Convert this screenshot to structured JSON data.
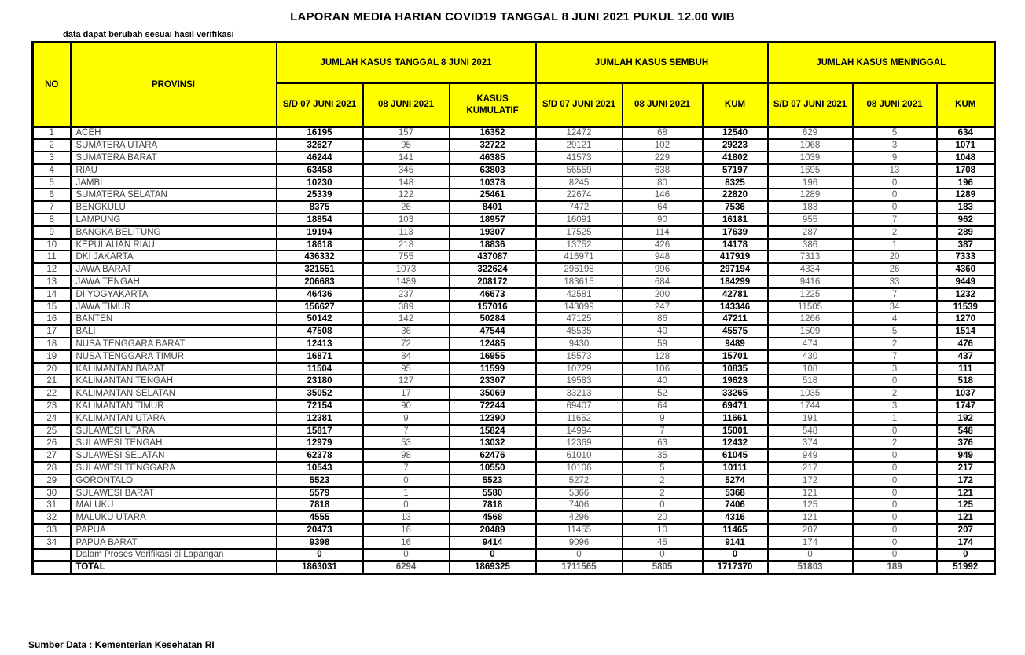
{
  "title": "LAPORAN MEDIA HARIAN COVID19 TANGGAL 8 JUNI 2021 PUKUL 12.00 WIB",
  "note": "data dapat berubah sesuai hasil verifikasi",
  "footer": "Sumber Data : Kementerian Kesehatan RI",
  "colors": {
    "header_bg": "#FFFF00",
    "border": "#000000",
    "bold_text": "#000000",
    "gray_num": "#595959",
    "prov_text": "#404040"
  },
  "table": {
    "no_label": "NO",
    "provinsi_label": "PROVINSI",
    "groups": [
      {
        "label": "JUMLAH KASUS TANGGAL 8 JUNI 2021",
        "sub": [
          "S/D 07 JUNI 2021",
          "08 JUNI 2021",
          "KASUS KUMULATIF"
        ]
      },
      {
        "label": "JUMLAH KASUS SEMBUH",
        "sub": [
          "S/D 07 JUNI 2021",
          "08 JUNI 2021",
          "KUM"
        ]
      },
      {
        "label": "JUMLAH KASUS MENINGGAL",
        "sub": [
          "S/D 07 JUNI 2021",
          "08 JUNI 2021",
          "KUM"
        ]
      }
    ],
    "bold_value_columns": [
      0,
      2,
      5,
      8
    ],
    "gray_value_columns": [
      1,
      4,
      7
    ],
    "rows": [
      [
        "1",
        "ACEH",
        "16195",
        "157",
        "16352",
        "12472",
        "68",
        "12540",
        "629",
        "5",
        "634"
      ],
      [
        "2",
        "SUMATERA UTARA",
        "32627",
        "95",
        "32722",
        "29121",
        "102",
        "29223",
        "1068",
        "3",
        "1071"
      ],
      [
        "3",
        "SUMATERA BARAT",
        "46244",
        "141",
        "46385",
        "41573",
        "229",
        "41802",
        "1039",
        "9",
        "1048"
      ],
      [
        "4",
        "RIAU",
        "63458",
        "345",
        "63803",
        "56559",
        "638",
        "57197",
        "1695",
        "13",
        "1708"
      ],
      [
        "5",
        "JAMBI",
        "10230",
        "148",
        "10378",
        "8245",
        "80",
        "8325",
        "196",
        "0",
        "196"
      ],
      [
        "6",
        "SUMATERA SELATAN",
        "25339",
        "122",
        "25461",
        "22674",
        "146",
        "22820",
        "1289",
        "0",
        "1289"
      ],
      [
        "7",
        "BENGKULU",
        "8375",
        "26",
        "8401",
        "7472",
        "64",
        "7536",
        "183",
        "0",
        "183"
      ],
      [
        "8",
        "LAMPUNG",
        "18854",
        "103",
        "18957",
        "16091",
        "90",
        "16181",
        "955",
        "7",
        "962"
      ],
      [
        "9",
        "BANGKA BELITUNG",
        "19194",
        "113",
        "19307",
        "17525",
        "114",
        "17639",
        "287",
        "2",
        "289"
      ],
      [
        "10",
        "KEPULAUAN RIAU",
        "18618",
        "218",
        "18836",
        "13752",
        "426",
        "14178",
        "386",
        "1",
        "387"
      ],
      [
        "11",
        "DKI JAKARTA",
        "436332",
        "755",
        "437087",
        "416971",
        "948",
        "417919",
        "7313",
        "20",
        "7333"
      ],
      [
        "12",
        "JAWA BARAT",
        "321551",
        "1073",
        "322624",
        "296198",
        "996",
        "297194",
        "4334",
        "26",
        "4360"
      ],
      [
        "13",
        "JAWA TENGAH",
        "206683",
        "1489",
        "208172",
        "183615",
        "684",
        "184299",
        "9416",
        "33",
        "9449"
      ],
      [
        "14",
        "DI YOGYAKARTA",
        "46436",
        "237",
        "46673",
        "42581",
        "200",
        "42781",
        "1225",
        "7",
        "1232"
      ],
      [
        "15",
        "JAWA TIMUR",
        "156627",
        "389",
        "157016",
        "143099",
        "247",
        "143346",
        "11505",
        "34",
        "11539"
      ],
      [
        "16",
        "BANTEN",
        "50142",
        "142",
        "50284",
        "47125",
        "86",
        "47211",
        "1266",
        "4",
        "1270"
      ],
      [
        "17",
        "BALI",
        "47508",
        "36",
        "47544",
        "45535",
        "40",
        "45575",
        "1509",
        "5",
        "1514"
      ],
      [
        "18",
        "NUSA TENGGARA BARAT",
        "12413",
        "72",
        "12485",
        "9430",
        "59",
        "9489",
        "474",
        "2",
        "476"
      ],
      [
        "19",
        "NUSA TENGGARA TIMUR",
        "16871",
        "84",
        "16955",
        "15573",
        "128",
        "15701",
        "430",
        "7",
        "437"
      ],
      [
        "20",
        "KALIMANTAN BARAT",
        "11504",
        "95",
        "11599",
        "10729",
        "106",
        "10835",
        "108",
        "3",
        "111"
      ],
      [
        "21",
        "KALIMANTAN TENGAH",
        "23180",
        "127",
        "23307",
        "19583",
        "40",
        "19623",
        "518",
        "0",
        "518"
      ],
      [
        "22",
        "KALIMANTAN SELATAN",
        "35052",
        "17",
        "35069",
        "33213",
        "52",
        "33265",
        "1035",
        "2",
        "1037"
      ],
      [
        "23",
        "KALIMANTAN TIMUR",
        "72154",
        "90",
        "72244",
        "69407",
        "64",
        "69471",
        "1744",
        "3",
        "1747"
      ],
      [
        "24",
        "KALIMANTAN UTARA",
        "12381",
        "9",
        "12390",
        "11652",
        "9",
        "11661",
        "191",
        "1",
        "192"
      ],
      [
        "25",
        "SULAWESI UTARA",
        "15817",
        "7",
        "15824",
        "14994",
        "7",
        "15001",
        "548",
        "0",
        "548"
      ],
      [
        "26",
        "SULAWESI TENGAH",
        "12979",
        "53",
        "13032",
        "12369",
        "63",
        "12432",
        "374",
        "2",
        "376"
      ],
      [
        "27",
        "SULAWESI SELATAN",
        "62378",
        "98",
        "62476",
        "61010",
        "35",
        "61045",
        "949",
        "0",
        "949"
      ],
      [
        "28",
        "SULAWESI TENGGARA",
        "10543",
        "7",
        "10550",
        "10106",
        "5",
        "10111",
        "217",
        "0",
        "217"
      ],
      [
        "29",
        "GORONTALO",
        "5523",
        "0",
        "5523",
        "5272",
        "2",
        "5274",
        "172",
        "0",
        "172"
      ],
      [
        "30",
        "SULAWESI BARAT",
        "5579",
        "1",
        "5580",
        "5366",
        "2",
        "5368",
        "121",
        "0",
        "121"
      ],
      [
        "31",
        "MALUKU",
        "7818",
        "0",
        "7818",
        "7406",
        "0",
        "7406",
        "125",
        "0",
        "125"
      ],
      [
        "32",
        "MALUKU UTARA",
        "4555",
        "13",
        "4568",
        "4296",
        "20",
        "4316",
        "121",
        "0",
        "121"
      ],
      [
        "33",
        "PAPUA",
        "20473",
        "16",
        "20489",
        "11455",
        "10",
        "11465",
        "207",
        "0",
        "207"
      ],
      [
        "34",
        "PAPUA BARAT",
        "9398",
        "16",
        "9414",
        "9096",
        "45",
        "9141",
        "174",
        "0",
        "174"
      ]
    ],
    "verification_row": [
      "",
      "Dalam Proses Verifikasi di Lapangan",
      "0",
      "0",
      "0",
      "0",
      "0",
      "0",
      "0",
      "0",
      "0"
    ],
    "total_row": [
      "",
      "TOTAL",
      "1863031",
      "6294",
      "1869325",
      "1711565",
      "5805",
      "1717370",
      "51803",
      "189",
      "51992"
    ]
  }
}
